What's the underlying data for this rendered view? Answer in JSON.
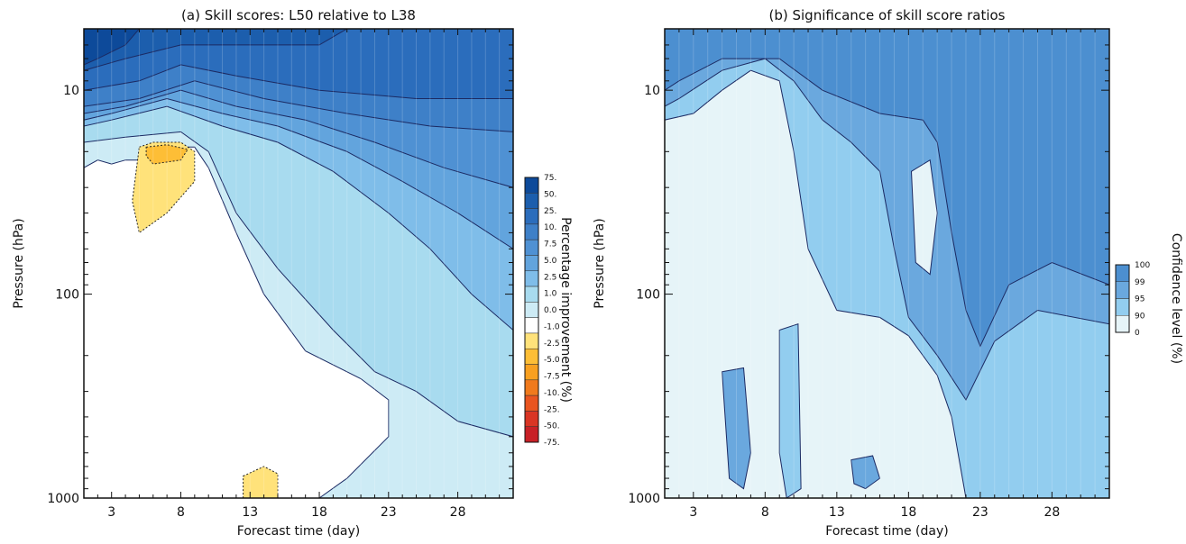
{
  "chart_data": [
    {
      "type": "heatmap",
      "subtype": "filled-contour",
      "title": "(a) Skill scores: L50 relative to L38",
      "xlabel": "Forecast time (day)",
      "ylabel": "Pressure (hPa)",
      "xlim": [
        1,
        32
      ],
      "ylim": [
        5,
        1000
      ],
      "y_scale": "log",
      "y_reversed": true,
      "x_ticks": [
        "3",
        "8",
        "13",
        "18",
        "23",
        "28"
      ],
      "y_ticks": [
        "10",
        "100",
        "1000"
      ],
      "colorbar": {
        "title": "Percentage improvement (%)",
        "levels": [
          "75.",
          "50.",
          "25.",
          "10.",
          "7.5",
          "5.0",
          "2.5",
          "1.0",
          "0.0",
          "-1.0",
          "-2.5",
          "-5.0",
          "-7.5",
          "-10.",
          "-25.",
          "-50.",
          "-75."
        ],
        "colors": [
          "#0d4a9a",
          "#1c5ead",
          "#2b6dbc",
          "#3e80c8",
          "#4f91d3",
          "#62a4dd",
          "#7fbde9",
          "#a8dbef",
          "#cdebf5",
          "#ffffff",
          "#ffe27a",
          "#fdbe36",
          "#f8a020",
          "#f07a1d",
          "#e95520",
          "#d93524",
          "#c82026"
        ]
      },
      "regions": [
        {
          "level": ">75",
          "desc": "top-left corner, 5-7 hPa, days 1-3"
        },
        {
          "level": "10-50",
          "desc": "upper stratosphere band above ~10-20 hPa"
        },
        {
          "level": "1-10",
          "desc": "mid layers sloping down with lead time"
        },
        {
          "level": "0-1",
          "desc": "light blue region below ~30 hPa at longer leads"
        },
        {
          "level": "-1-0",
          "desc": "white region, lower levels days 1-18"
        },
        {
          "level": "-2.5 to -1",
          "desc": "yellow blob near 20-40 hPa, days 5-9"
        },
        {
          "level": "-5 to -2.5",
          "desc": "orange core near 20 hPa, days 5-8"
        },
        {
          "level": "-2.5 to -1",
          "desc": "small yellow blob near 1000 hPa, days 12-15"
        }
      ]
    },
    {
      "type": "heatmap",
      "subtype": "filled-contour",
      "title": "(b) Significance of skill score ratios",
      "xlabel": "Forecast time (day)",
      "ylabel": "Pressure (hPa)",
      "xlim": [
        1,
        32
      ],
      "ylim": [
        5,
        1000
      ],
      "y_scale": "log",
      "y_reversed": true,
      "x_ticks": [
        "3",
        "8",
        "13",
        "18",
        "23",
        "28"
      ],
      "y_ticks": [
        "10",
        "100",
        "1000"
      ],
      "colorbar": {
        "title": "Confidence level (%)",
        "levels": [
          "100",
          "99",
          "95",
          "90",
          "0"
        ],
        "colors": [
          "#4c8fd0",
          "#6aa8de",
          "#92cdef",
          "#e6f4f8"
        ]
      },
      "regions": [
        {
          "level": ">99",
          "desc": "upper region above ~10 hPa and right side extending down to ~200 hPa"
        },
        {
          "level": "95-99",
          "desc": "bands bordering significant regions"
        },
        {
          "level": "90-95",
          "desc": "thin bands and isolated columns"
        },
        {
          "level": "<90",
          "desc": "large lower-left region"
        }
      ]
    }
  ]
}
